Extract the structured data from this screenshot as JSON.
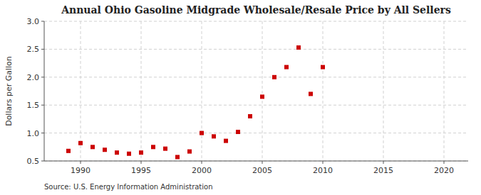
{
  "chart_data": {
    "type": "scatter",
    "title": "Annual Ohio Gasoline Midgrade Wholesale/Resale Price by All Sellers",
    "ylabel": "Dollars per Gallon",
    "annotation": "Source: U.S. Energy Information Administration",
    "x": [
      1989,
      1990,
      1991,
      1992,
      1993,
      1994,
      1995,
      1996,
      1997,
      1998,
      1999,
      2000,
      2001,
      2002,
      2003,
      2004,
      2005,
      2006,
      2007,
      2008,
      2009,
      2010
    ],
    "values": [
      0.68,
      0.82,
      0.75,
      0.7,
      0.65,
      0.63,
      0.65,
      0.75,
      0.72,
      0.57,
      0.67,
      1.0,
      0.94,
      0.86,
      1.02,
      1.3,
      1.65,
      2.0,
      2.18,
      2.53,
      1.7,
      2.18
    ],
    "color": "#cc0000",
    "marker": "square",
    "xlim": [
      1987,
      2022
    ],
    "ylim": [
      0.5,
      3.0
    ],
    "xticks": [
      1990,
      1995,
      2000,
      2005,
      2010,
      2015,
      2020
    ],
    "yticks": [
      0.5,
      {
        "value": 1.0,
        "label": "1.0"
      },
      1.5,
      {
        "value": 2.0,
        "label": "2.0"
      },
      2.5,
      {
        "value": 3.0,
        "label": "3.0"
      }
    ],
    "grid": true
  }
}
